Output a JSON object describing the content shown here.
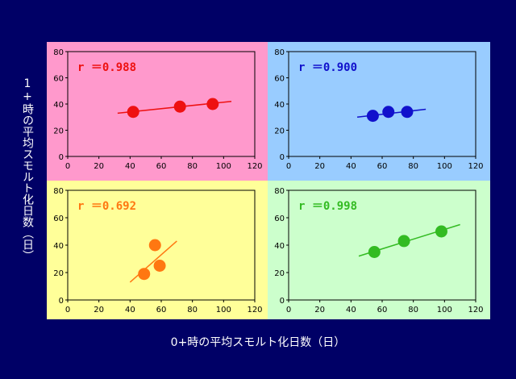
{
  "axis_labels": {
    "y": "1+時の平均スモルト化日数（日）",
    "x": "0+時の平均スモルト化日数（日）"
  },
  "chart_data": [
    {
      "type": "scatter",
      "panel": "top-left",
      "background": "#ff99cc",
      "color": "#ee1111",
      "r_label": "r ＝0.988",
      "xlim": [
        0,
        120
      ],
      "ylim": [
        0,
        80
      ],
      "xticks": [
        0,
        20,
        40,
        60,
        80,
        100,
        120
      ],
      "yticks": [
        0,
        20,
        40,
        60,
        80
      ],
      "points": [
        {
          "x": 42,
          "y": 34
        },
        {
          "x": 72,
          "y": 38
        },
        {
          "x": 93,
          "y": 40
        }
      ],
      "trendline": {
        "x1": 32,
        "y1": 33,
        "x2": 105,
        "y2": 42
      }
    },
    {
      "type": "scatter",
      "panel": "top-right",
      "background": "#99ccff",
      "color": "#1111cc",
      "r_label": "r ＝0.900",
      "xlim": [
        0,
        120
      ],
      "ylim": [
        0,
        80
      ],
      "xticks": [
        0,
        20,
        40,
        60,
        80,
        100,
        120
      ],
      "yticks": [
        0,
        20,
        40,
        60,
        80
      ],
      "points": [
        {
          "x": 54,
          "y": 31
        },
        {
          "x": 64,
          "y": 34
        },
        {
          "x": 76,
          "y": 34
        }
      ],
      "trendline": {
        "x1": 44,
        "y1": 30,
        "x2": 88,
        "y2": 36
      }
    },
    {
      "type": "scatter",
      "panel": "bottom-left",
      "background": "#ffff99",
      "color": "#ff7711",
      "r_label": "r ＝0.692",
      "xlim": [
        0,
        120
      ],
      "ylim": [
        0,
        80
      ],
      "xticks": [
        0,
        20,
        40,
        60,
        80,
        100,
        120
      ],
      "yticks": [
        0,
        20,
        40,
        60,
        80
      ],
      "points": [
        {
          "x": 49,
          "y": 19
        },
        {
          "x": 56,
          "y": 40
        },
        {
          "x": 59,
          "y": 25
        }
      ],
      "trendline": {
        "x1": 40,
        "y1": 13,
        "x2": 70,
        "y2": 43
      }
    },
    {
      "type": "scatter",
      "panel": "bottom-right",
      "background": "#ccffcc",
      "color": "#33bb22",
      "r_label": "r ＝0.998",
      "xlim": [
        0,
        120
      ],
      "ylim": [
        0,
        80
      ],
      "xticks": [
        0,
        20,
        40,
        60,
        80,
        100,
        120
      ],
      "yticks": [
        0,
        20,
        40,
        60,
        80
      ],
      "points": [
        {
          "x": 55,
          "y": 35
        },
        {
          "x": 74,
          "y": 43
        },
        {
          "x": 98,
          "y": 50
        }
      ],
      "trendline": {
        "x1": 45,
        "y1": 32,
        "x2": 110,
        "y2": 55
      }
    }
  ]
}
